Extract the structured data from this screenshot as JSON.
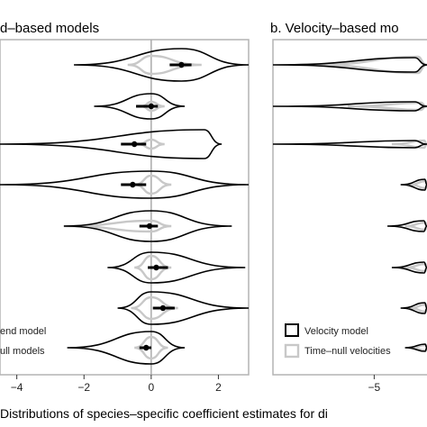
{
  "chart_data": [
    {
      "type": "violin",
      "panel": "a",
      "title": "d–based models",
      "xlim": [
        -4.5,
        2.9
      ],
      "x_ticks": [
        {
          "value": -4,
          "label": "−4"
        },
        {
          "value": -2,
          "label": "−2"
        },
        {
          "value": 0,
          "label": "0"
        },
        {
          "value": 2,
          "label": "2"
        }
      ],
      "zero_line": 0,
      "legend": {
        "position": "bottom-left",
        "entries": [
          {
            "label": "end model",
            "color": "#000000"
          },
          {
            "label": "ull models",
            "color": "#c8c8c8"
          }
        ]
      },
      "rows": [
        {
          "point": 0.9,
          "ci": [
            0.55,
            1.2
          ],
          "black": {
            "min": -2.3,
            "max": 2.9,
            "mode": 0.9,
            "height": 18
          },
          "grey": {
            "min": -0.7,
            "max": 1.5,
            "mode": 0.0,
            "height": 10
          }
        },
        {
          "point": 0.0,
          "ci": [
            -0.45,
            0.2
          ],
          "black": {
            "min": -1.7,
            "max": 1.0,
            "mode": 0.0,
            "height": 14
          },
          "grey": {
            "min": -0.3,
            "max": 0.4,
            "mode": 0.0,
            "height": 5
          }
        },
        {
          "point": -0.5,
          "ci": [
            -0.9,
            -0.15
          ],
          "black": {
            "min": -4.5,
            "max": 2.1,
            "mode": 1.8,
            "height": 16
          },
          "grey": {
            "min": -0.4,
            "max": 0.4,
            "mode": 0.0,
            "height": 5
          }
        },
        {
          "point": -0.55,
          "ci": [
            -0.9,
            -0.15
          ],
          "black": {
            "min": -4.5,
            "max": 2.9,
            "mode": 0.0,
            "height": 15
          },
          "grey": {
            "min": -0.5,
            "max": 0.6,
            "mode": 0.0,
            "height": 10
          }
        },
        {
          "point": -0.05,
          "ci": [
            -0.35,
            0.2
          ],
          "black": {
            "min": -2.6,
            "max": 2.4,
            "mode": 0.0,
            "height": 17
          },
          "grey": {
            "min": -2.6,
            "max": 0.6,
            "mode": 0.0,
            "height": 6
          }
        },
        {
          "point": 0.15,
          "ci": [
            -0.1,
            0.5
          ],
          "black": {
            "min": -1.3,
            "max": 2.8,
            "mode": 0.0,
            "height": 17
          },
          "grey": {
            "min": -0.5,
            "max": 0.6,
            "mode": 0.0,
            "height": 13
          }
        },
        {
          "point": 0.35,
          "ci": [
            0.05,
            0.7
          ],
          "black": {
            "min": -1.0,
            "max": 2.9,
            "mode": 0.0,
            "height": 18
          },
          "grey": {
            "min": -0.6,
            "max": 0.8,
            "mode": 0.0,
            "height": 12
          }
        },
        {
          "point": -0.15,
          "ci": [
            -0.35,
            0.0
          ],
          "black": {
            "min": -2.5,
            "max": 1.0,
            "mode": 0.0,
            "height": 18
          },
          "grey": {
            "min": -0.5,
            "max": 0.5,
            "mode": 0.0,
            "height": 12
          }
        }
      ]
    },
    {
      "type": "violin",
      "panel": "b",
      "title": "b. Velocity–based mo",
      "xlim": [
        -7.3,
        -3.8
      ],
      "x_ticks": [
        {
          "value": -5,
          "label": "−5"
        }
      ],
      "legend": {
        "position": "bottom-left",
        "entries": [
          {
            "label": "Velocity model",
            "color": "#000000"
          },
          {
            "label": "Time–null velocities",
            "color": "#c8c8c8"
          }
        ]
      },
      "rows": [
        {
          "black": {
            "min": -7.3,
            "max": -3.8,
            "mode": -3.8,
            "height": 8
          },
          "grey": {
            "min": -6.4,
            "max": -3.8,
            "mode": -3.8,
            "height": 9
          }
        },
        {
          "black": {
            "min": -7.3,
            "max": -3.8,
            "mode": -3.8,
            "height": 5
          },
          "grey": {
            "min": -5.6,
            "max": -3.8,
            "mode": -3.8,
            "height": 4
          }
        },
        {
          "black": {
            "min": -7.3,
            "max": -3.8,
            "mode": -3.8,
            "height": 4
          },
          "grey": {
            "min": -4.6,
            "max": -3.8,
            "mode": -3.8,
            "height": 4
          }
        },
        {
          "black": {
            "min": -4.4,
            "max": -3.8,
            "mode": -3.8,
            "height": 6
          },
          "grey": {
            "min": -4.2,
            "max": -3.8,
            "mode": -3.8,
            "height": 4
          }
        },
        {
          "black": {
            "min": -4.7,
            "max": -3.8,
            "mode": -3.8,
            "height": 6
          },
          "grey": {
            "min": -4.3,
            "max": -3.8,
            "mode": -3.8,
            "height": 4
          }
        },
        {
          "black": {
            "min": -4.6,
            "max": -3.8,
            "mode": -3.8,
            "height": 6
          },
          "grey": {
            "min": -4.3,
            "max": -3.8,
            "mode": -3.8,
            "height": 4
          }
        },
        {
          "black": {
            "min": -4.4,
            "max": -3.8,
            "mode": -3.8,
            "height": 6
          },
          "grey": {
            "min": -4.2,
            "max": -3.8,
            "mode": -3.8,
            "height": 4
          }
        },
        {
          "black": {
            "min": -4.3,
            "max": -3.8,
            "mode": -3.8,
            "height": 4
          },
          "grey": {
            "min": -4.2,
            "max": -3.8,
            "mode": -3.8,
            "height": 3
          }
        }
      ]
    }
  ],
  "xlabel": "Distributions of species–specific coefficient estimates for di"
}
